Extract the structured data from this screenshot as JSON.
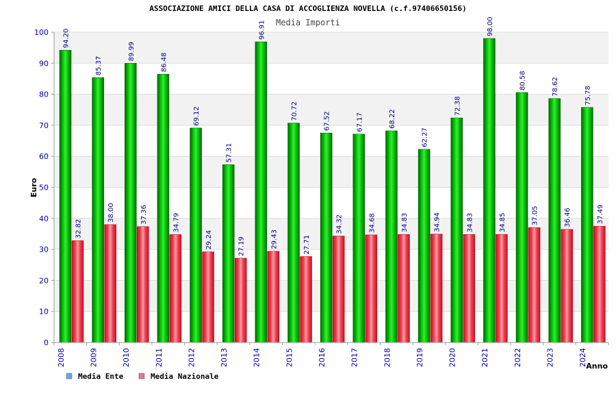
{
  "chart_data": {
    "type": "bar",
    "title": "ASSOCIAZIONE AMICI DELLA CASA DI ACCOGLIENZA NOVELLA (c.f.97406650156)",
    "subtitle": "Media Importi",
    "ylabel": "Euro",
    "xlabel": "Anno",
    "ylim": [
      0,
      100
    ],
    "yticks": [
      0,
      10,
      20,
      30,
      40,
      50,
      60,
      70,
      80,
      90,
      100
    ],
    "grid": "horizontal bands",
    "legend_position": "bottom-left",
    "categories": [
      "2008",
      "2009",
      "2010",
      "2011",
      "2012",
      "2013",
      "2014",
      "2015",
      "2016",
      "2017",
      "2018",
      "2019",
      "2020",
      "2021",
      "2022",
      "2023",
      "2024"
    ],
    "series": [
      {
        "name": "Media Ente",
        "color": "#00aa00",
        "legend_color": "#66aaee",
        "values": [
          94.2,
          85.37,
          89.99,
          86.48,
          69.12,
          57.31,
          96.91,
          70.72,
          67.52,
          67.17,
          68.22,
          62.27,
          72.38,
          98.0,
          80.58,
          78.62,
          75.78
        ],
        "labels": [
          "94.20",
          "85.37",
          "89.99",
          "86.48",
          "69.12",
          "57.31",
          "96.91",
          "70.72",
          "67.52",
          "67.17",
          "68.22",
          "62.27",
          "72.38",
          "98.00",
          "80.58",
          "78.62",
          "75.78"
        ]
      },
      {
        "name": "Media Nazionale",
        "color": "#e81c2c",
        "legend_color": "#dd7799",
        "values": [
          32.82,
          38.0,
          37.36,
          34.79,
          29.24,
          27.19,
          29.43,
          27.71,
          34.32,
          34.68,
          34.83,
          34.94,
          34.83,
          34.85,
          37.05,
          36.46,
          37.49
        ],
        "labels": [
          "32.82",
          "38.00",
          "37.36",
          "34.79",
          "29.24",
          "27.19",
          "29.43",
          "27.71",
          "34.32",
          "34.68",
          "34.83",
          "34.94",
          "34.83",
          "34.85",
          "37.05",
          "36.46",
          "37.49"
        ]
      }
    ]
  }
}
